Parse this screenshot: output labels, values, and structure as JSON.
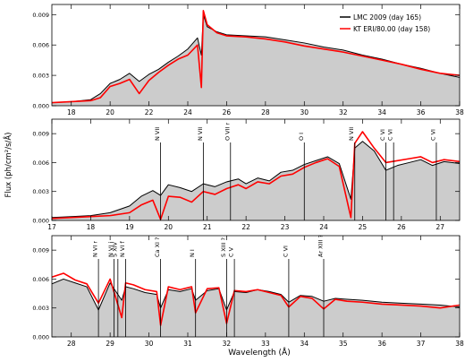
{
  "figure": {
    "ylabel": "Flux (ph/cm²/s/Å)",
    "xlabel": "Wavelength (Å)",
    "legend": [
      {
        "label": "LMC 2009 (day 165)",
        "color": "#000000"
      },
      {
        "label": "KT ERI/80.00 (day 158)",
        "color": "#ff0000"
      }
    ]
  },
  "chart_data": [
    {
      "type": "area",
      "panel": "top",
      "xlim": [
        17,
        38
      ],
      "ylim": [
        0,
        0.01
      ],
      "xticks": [
        18,
        20,
        22,
        24,
        26,
        28,
        30,
        32,
        34,
        36,
        38
      ],
      "yticks": [
        0.0,
        0.003,
        0.006,
        0.009
      ],
      "ytick_labels": [
        "0.000",
        "0.003",
        "0.006",
        "0.009"
      ],
      "legend_placement": "top-right",
      "series": [
        {
          "name": "LMC 2009 (day 165)",
          "color": "#000000",
          "x": [
            17,
            18,
            19,
            19.5,
            20,
            20.5,
            21,
            21.5,
            22,
            22.5,
            23,
            23.5,
            24,
            24.5,
            24.7,
            24.8,
            25,
            25.5,
            26,
            27,
            28,
            29,
            30,
            31,
            32,
            33,
            34,
            35,
            36,
            37,
            38
          ],
          "values": [
            0.0003,
            0.0004,
            0.0006,
            0.0012,
            0.0022,
            0.0026,
            0.0032,
            0.0024,
            0.0031,
            0.0036,
            0.0043,
            0.0049,
            0.0056,
            0.0067,
            0.005,
            0.009,
            0.0078,
            0.0073,
            0.007,
            0.0069,
            0.0068,
            0.0065,
            0.0062,
            0.0058,
            0.0055,
            0.005,
            0.0046,
            0.0041,
            0.0037,
            0.0032,
            0.0028
          ]
        },
        {
          "name": "KT ERI/80.00 (day 158)",
          "color": "#ff0000",
          "x": [
            17,
            18,
            19,
            19.5,
            20,
            20.5,
            21,
            21.5,
            22,
            22.5,
            23,
            23.5,
            24,
            24.5,
            24.7,
            24.8,
            25,
            25.5,
            26,
            27,
            28,
            29,
            30,
            31,
            32,
            33,
            34,
            35,
            36,
            37,
            38
          ],
          "values": [
            0.0003,
            0.0004,
            0.0005,
            0.0008,
            0.0019,
            0.0022,
            0.0026,
            0.0012,
            0.0025,
            0.0033,
            0.004,
            0.0046,
            0.005,
            0.006,
            0.0018,
            0.0094,
            0.008,
            0.0072,
            0.0069,
            0.0068,
            0.0066,
            0.0063,
            0.0059,
            0.0056,
            0.0053,
            0.0049,
            0.0045,
            0.0041,
            0.0036,
            0.0032,
            0.003
          ]
        }
      ]
    },
    {
      "type": "area",
      "panel": "middle",
      "xlim": [
        17,
        27.5
      ],
      "ylim": [
        0,
        0.0105
      ],
      "xticks": [
        17,
        18,
        19,
        20,
        21,
        22,
        23,
        24,
        25,
        26,
        27
      ],
      "yticks": [
        0.0,
        0.003,
        0.006,
        0.009
      ],
      "ytick_labels": [
        "0.000",
        "0.003",
        "0.006",
        "0.009"
      ],
      "series": [
        {
          "name": "LMC 2009 (day 165)",
          "color": "#000000",
          "x": [
            17,
            17.5,
            18,
            18.5,
            19,
            19.3,
            19.6,
            19.8,
            20,
            20.3,
            20.6,
            20.9,
            21.2,
            21.5,
            21.8,
            22,
            22.3,
            22.6,
            22.9,
            23.2,
            23.5,
            23.8,
            24.1,
            24.4,
            24.7,
            24.8,
            25,
            25.3,
            25.6,
            25.9,
            26.2,
            26.5,
            26.8,
            27.1,
            27.5
          ],
          "values": [
            0.0003,
            0.0004,
            0.0005,
            0.0008,
            0.0015,
            0.0025,
            0.0031,
            0.0026,
            0.0037,
            0.0034,
            0.003,
            0.0038,
            0.0035,
            0.004,
            0.0043,
            0.0038,
            0.0044,
            0.0041,
            0.005,
            0.0052,
            0.0058,
            0.0062,
            0.0066,
            0.0059,
            0.0022,
            0.0075,
            0.0082,
            0.0072,
            0.0052,
            0.0057,
            0.006,
            0.0063,
            0.0057,
            0.0061,
            0.0059
          ]
        },
        {
          "name": "KT ERI/80.00 (day 158)",
          "color": "#ff0000",
          "x": [
            17,
            17.5,
            18,
            18.5,
            19,
            19.3,
            19.6,
            19.8,
            20,
            20.3,
            20.6,
            20.9,
            21.2,
            21.5,
            21.8,
            22,
            22.3,
            22.6,
            22.9,
            23.2,
            23.5,
            23.8,
            24.1,
            24.4,
            24.7,
            24.8,
            25,
            25.3,
            25.6,
            25.9,
            26.2,
            26.5,
            26.8,
            27.1,
            27.5
          ],
          "values": [
            0.0002,
            0.0003,
            0.0004,
            0.0005,
            0.0008,
            0.0016,
            0.0021,
            0.0001,
            0.0025,
            0.0024,
            0.0019,
            0.003,
            0.0027,
            0.0033,
            0.0037,
            0.0033,
            0.004,
            0.0038,
            0.0046,
            0.0048,
            0.0055,
            0.006,
            0.0064,
            0.0056,
            0.0003,
            0.008,
            0.0092,
            0.0075,
            0.006,
            0.0062,
            0.0064,
            0.0066,
            0.006,
            0.0063,
            0.0061
          ]
        }
      ],
      "annotations": [
        {
          "label": "N VII",
          "x": 19.8
        },
        {
          "label": "N VII",
          "x": 20.9
        },
        {
          "label": "O VII r",
          "x": 21.6
        },
        {
          "label": "O I",
          "x": 23.5
        },
        {
          "label": "N VII",
          "x": 24.8
        },
        {
          "label": "C VI",
          "x": 25.6
        },
        {
          "label": "C VI",
          "x": 25.8
        },
        {
          "label": "C VI",
          "x": 26.9
        }
      ]
    },
    {
      "type": "area",
      "panel": "bottom",
      "xlim": [
        27.5,
        38
      ],
      "ylim": [
        0,
        0.0105
      ],
      "xticks": [
        28,
        29,
        30,
        31,
        32,
        33,
        34,
        35,
        36,
        37,
        38
      ],
      "yticks": [
        0.0,
        0.003,
        0.006,
        0.009
      ],
      "ytick_labels": [
        "0.000",
        "0.003",
        "0.006",
        "0.009"
      ],
      "series": [
        {
          "name": "LMC 2009 (day 165)",
          "color": "#000000",
          "x": [
            27.5,
            27.8,
            28.1,
            28.4,
            28.7,
            29.0,
            29.3,
            29.4,
            29.6,
            29.9,
            30.2,
            30.3,
            30.5,
            30.8,
            31.1,
            31.2,
            31.5,
            31.8,
            32.0,
            32.2,
            32.5,
            32.8,
            33.1,
            33.4,
            33.6,
            33.9,
            34.2,
            34.5,
            34.8,
            35.1,
            35.5,
            36,
            36.5,
            37,
            37.5,
            38
          ],
          "values": [
            0.0055,
            0.006,
            0.0056,
            0.0052,
            0.0028,
            0.0056,
            0.0038,
            0.0052,
            0.005,
            0.0046,
            0.0044,
            0.003,
            0.0049,
            0.0047,
            0.005,
            0.0038,
            0.0048,
            0.005,
            0.0028,
            0.0047,
            0.0046,
            0.0049,
            0.0047,
            0.0044,
            0.0036,
            0.0043,
            0.0042,
            0.0037,
            0.004,
            0.0039,
            0.0038,
            0.0036,
            0.0035,
            0.0034,
            0.0033,
            0.0031
          ]
        },
        {
          "name": "KT ERI/80.00 (day 158)",
          "color": "#ff0000",
          "x": [
            27.5,
            27.8,
            28.1,
            28.4,
            28.7,
            29.0,
            29.3,
            29.4,
            29.6,
            29.9,
            30.2,
            30.3,
            30.5,
            30.8,
            31.1,
            31.2,
            31.5,
            31.8,
            32.0,
            32.2,
            32.5,
            32.8,
            33.1,
            33.4,
            33.6,
            33.9,
            34.2,
            34.5,
            34.8,
            35.1,
            35.5,
            36,
            36.5,
            37,
            37.5,
            38
          ],
          "values": [
            0.0062,
            0.0066,
            0.0059,
            0.0055,
            0.0035,
            0.006,
            0.002,
            0.0056,
            0.0054,
            0.0049,
            0.0047,
            0.0012,
            0.0052,
            0.0049,
            0.0052,
            0.0025,
            0.005,
            0.0051,
            0.0014,
            0.0048,
            0.0047,
            0.0049,
            0.0046,
            0.0043,
            0.0031,
            0.0042,
            0.004,
            0.0029,
            0.0039,
            0.0037,
            0.0036,
            0.0034,
            0.0033,
            0.0032,
            0.003,
            0.0033
          ]
        }
      ],
      "annotations": [
        {
          "label": "N VI r",
          "x": 28.7
        },
        {
          "label": "N VI i",
          "x": 29.1
        },
        {
          "label": "S XIV",
          "x": 29.2
        },
        {
          "label": "N VI f",
          "x": 29.4
        },
        {
          "label": "Ca XI ?",
          "x": 30.3
        },
        {
          "label": "N I",
          "x": 31.2
        },
        {
          "label": "S XIII ?",
          "x": 32.0
        },
        {
          "label": "C V",
          "x": 32.2
        },
        {
          "label": "C VI",
          "x": 33.6
        },
        {
          "label": "Ar XIII ?",
          "x": 34.5
        }
      ]
    }
  ]
}
